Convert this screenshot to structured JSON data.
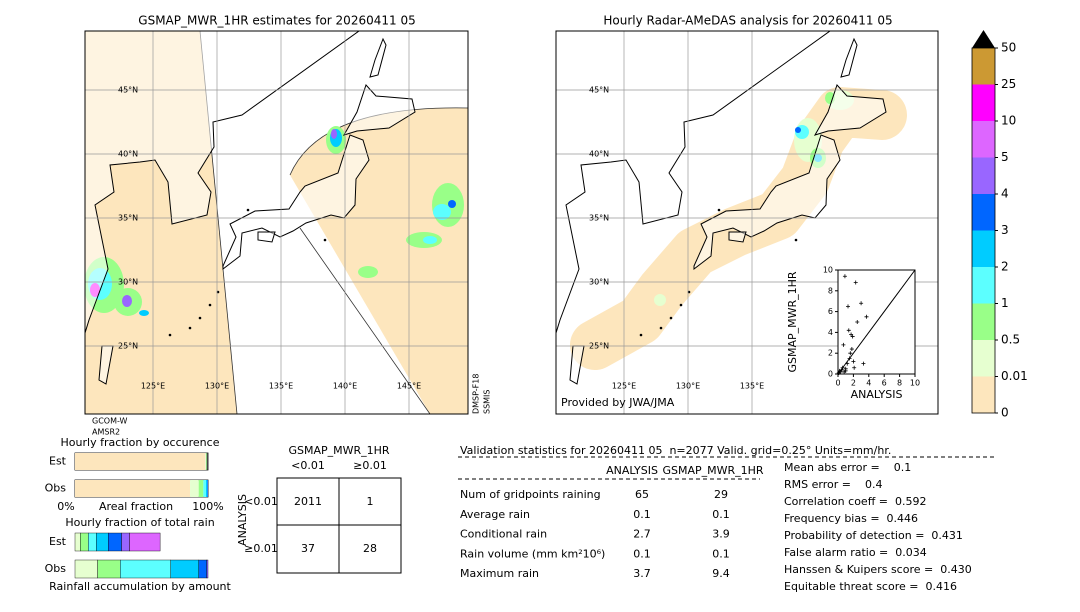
{
  "left_map": {
    "title": "GSMAP_MWR_1HR estimates for 20260411 05",
    "lat_labels": [
      "45°N",
      "40°N",
      "35°N",
      "30°N",
      "25°N"
    ],
    "lon_labels": [
      "125°E",
      "130°E",
      "135°E",
      "140°E",
      "145°E"
    ],
    "sensor_left": [
      "GCOM-W",
      "AMSR2"
    ],
    "sensor_right": [
      "DMSP-F18",
      "SSMIS"
    ]
  },
  "right_map": {
    "title": "Hourly Radar-AMeDAS analysis for 20260411 05",
    "lat_labels": [
      "45°N",
      "40°N",
      "35°N",
      "30°N",
      "25°N"
    ],
    "lon_labels": [
      "125°E",
      "130°E",
      "135°E"
    ],
    "credit": "Provided by JWA/JMA"
  },
  "scatter": {
    "type": "scatter",
    "xlabel": "ANALYSIS",
    "ylabel": "GSMAP_MWR_1HR",
    "xlim": [
      0,
      10
    ],
    "ylim": [
      0,
      10
    ],
    "xticks": [
      0,
      2,
      4,
      6,
      8,
      10
    ],
    "yticks": [
      0,
      2,
      4,
      6,
      8,
      10
    ],
    "x": [
      0.1,
      0.2,
      0.3,
      0.5,
      0.6,
      0.8,
      1.0,
      1.2,
      1.5,
      1.6,
      1.8,
      2.0,
      2.1,
      1.9,
      1.4,
      0.9,
      2.5,
      3.0,
      3.3,
      3.7,
      1.0,
      1.3,
      2.3,
      0.7,
      1.7
    ],
    "y": [
      0.1,
      0.3,
      0.2,
      0.4,
      0.6,
      0.2,
      0.5,
      1.0,
      1.5,
      2.0,
      2.4,
      1.2,
      0.6,
      3.6,
      4.2,
      9.4,
      5.0,
      6.8,
      1.0,
      5.5,
      0.3,
      6.5,
      8.8,
      2.8,
      3.8
    ]
  },
  "colorbar": {
    "ticks": [
      0,
      0.01,
      0.5,
      1,
      2,
      3,
      4,
      5,
      10,
      25,
      50
    ],
    "colors": [
      "#fde6bd",
      "#e6ffd0",
      "#99ff88",
      "#5cffff",
      "#00ccff",
      "#0066ff",
      "#9966ff",
      "#dd66ff",
      "#ff00ff",
      "#cc9933"
    ],
    "extend_color": "#000000"
  },
  "occurrence": {
    "title": "Hourly fraction by occurence",
    "rows": [
      "Est",
      "Obs"
    ],
    "axis_left": "0%",
    "axis_label": "Areal fraction",
    "axis_right": "100%",
    "bars": [
      {
        "values": [
          98,
          0.5,
          0.6,
          0.3,
          0.6
        ],
        "colors": [
          "#fde6bd",
          "#e6ffd0",
          "#99ff88",
          "#000000",
          "#333333"
        ]
      },
      {
        "values": [
          86.5,
          6.5,
          3.5,
          2,
          1,
          0.5
        ],
        "colors": [
          "#fde6bd",
          "#e6ffd0",
          "#99ff88",
          "#5cffff",
          "#00ccff",
          "#0066ff"
        ]
      }
    ]
  },
  "total_rain": {
    "title": "Hourly fraction of total rain",
    "rows": [
      "Est",
      "Obs"
    ],
    "xlabel": "Rainfall accumulation by amount",
    "bars": [
      {
        "values": [
          4,
          6,
          6,
          9,
          10,
          6,
          23
        ],
        "colors": [
          "#e6ffd0",
          "#99ff88",
          "#5cffff",
          "#00ccff",
          "#0066ff",
          "#9966ff",
          "#dd66ff"
        ]
      },
      {
        "values": [
          17,
          17,
          38,
          21,
          6,
          1
        ],
        "colors": [
          "#e6ffd0",
          "#99ff88",
          "#5cffff",
          "#00ccff",
          "#0066ff",
          "#9966ff"
        ]
      }
    ]
  },
  "contingency": {
    "title": "GSMAP_MWR_1HR",
    "col_labels": [
      "<0.01",
      "≥0.01"
    ],
    "row_axis": "ANALYSIS",
    "row_labels": [
      "<0.01",
      "≥0.01"
    ],
    "cells": [
      [
        2011,
        1
      ],
      [
        37,
        28
      ]
    ]
  },
  "validation": {
    "header": "Validation statistics for 20260411 05  n=2077 Valid. grid=0.25° Units=mm/hr.",
    "columns": [
      "ANALYSIS",
      "GSMAP_MWR_1HR"
    ],
    "rows": [
      [
        "Num of gridpoints raining",
        65,
        29
      ],
      [
        "Average rain",
        0.1,
        0.1
      ],
      [
        "Conditional rain",
        2.7,
        3.9
      ],
      [
        "Rain volume (mm km²10⁶)",
        0.1,
        0.1
      ],
      [
        "Maximum rain",
        3.7,
        9.4
      ]
    ],
    "scores": [
      "Mean abs error =    0.1",
      "RMS error =    0.4",
      "Correlation coeff =  0.592",
      "Frequency bias =  0.446",
      "Probability of detection =  0.431",
      "False alarm ratio =  0.034",
      "Hanssen & Kuipers score =  0.430",
      "Equitable threat score =  0.416"
    ]
  }
}
